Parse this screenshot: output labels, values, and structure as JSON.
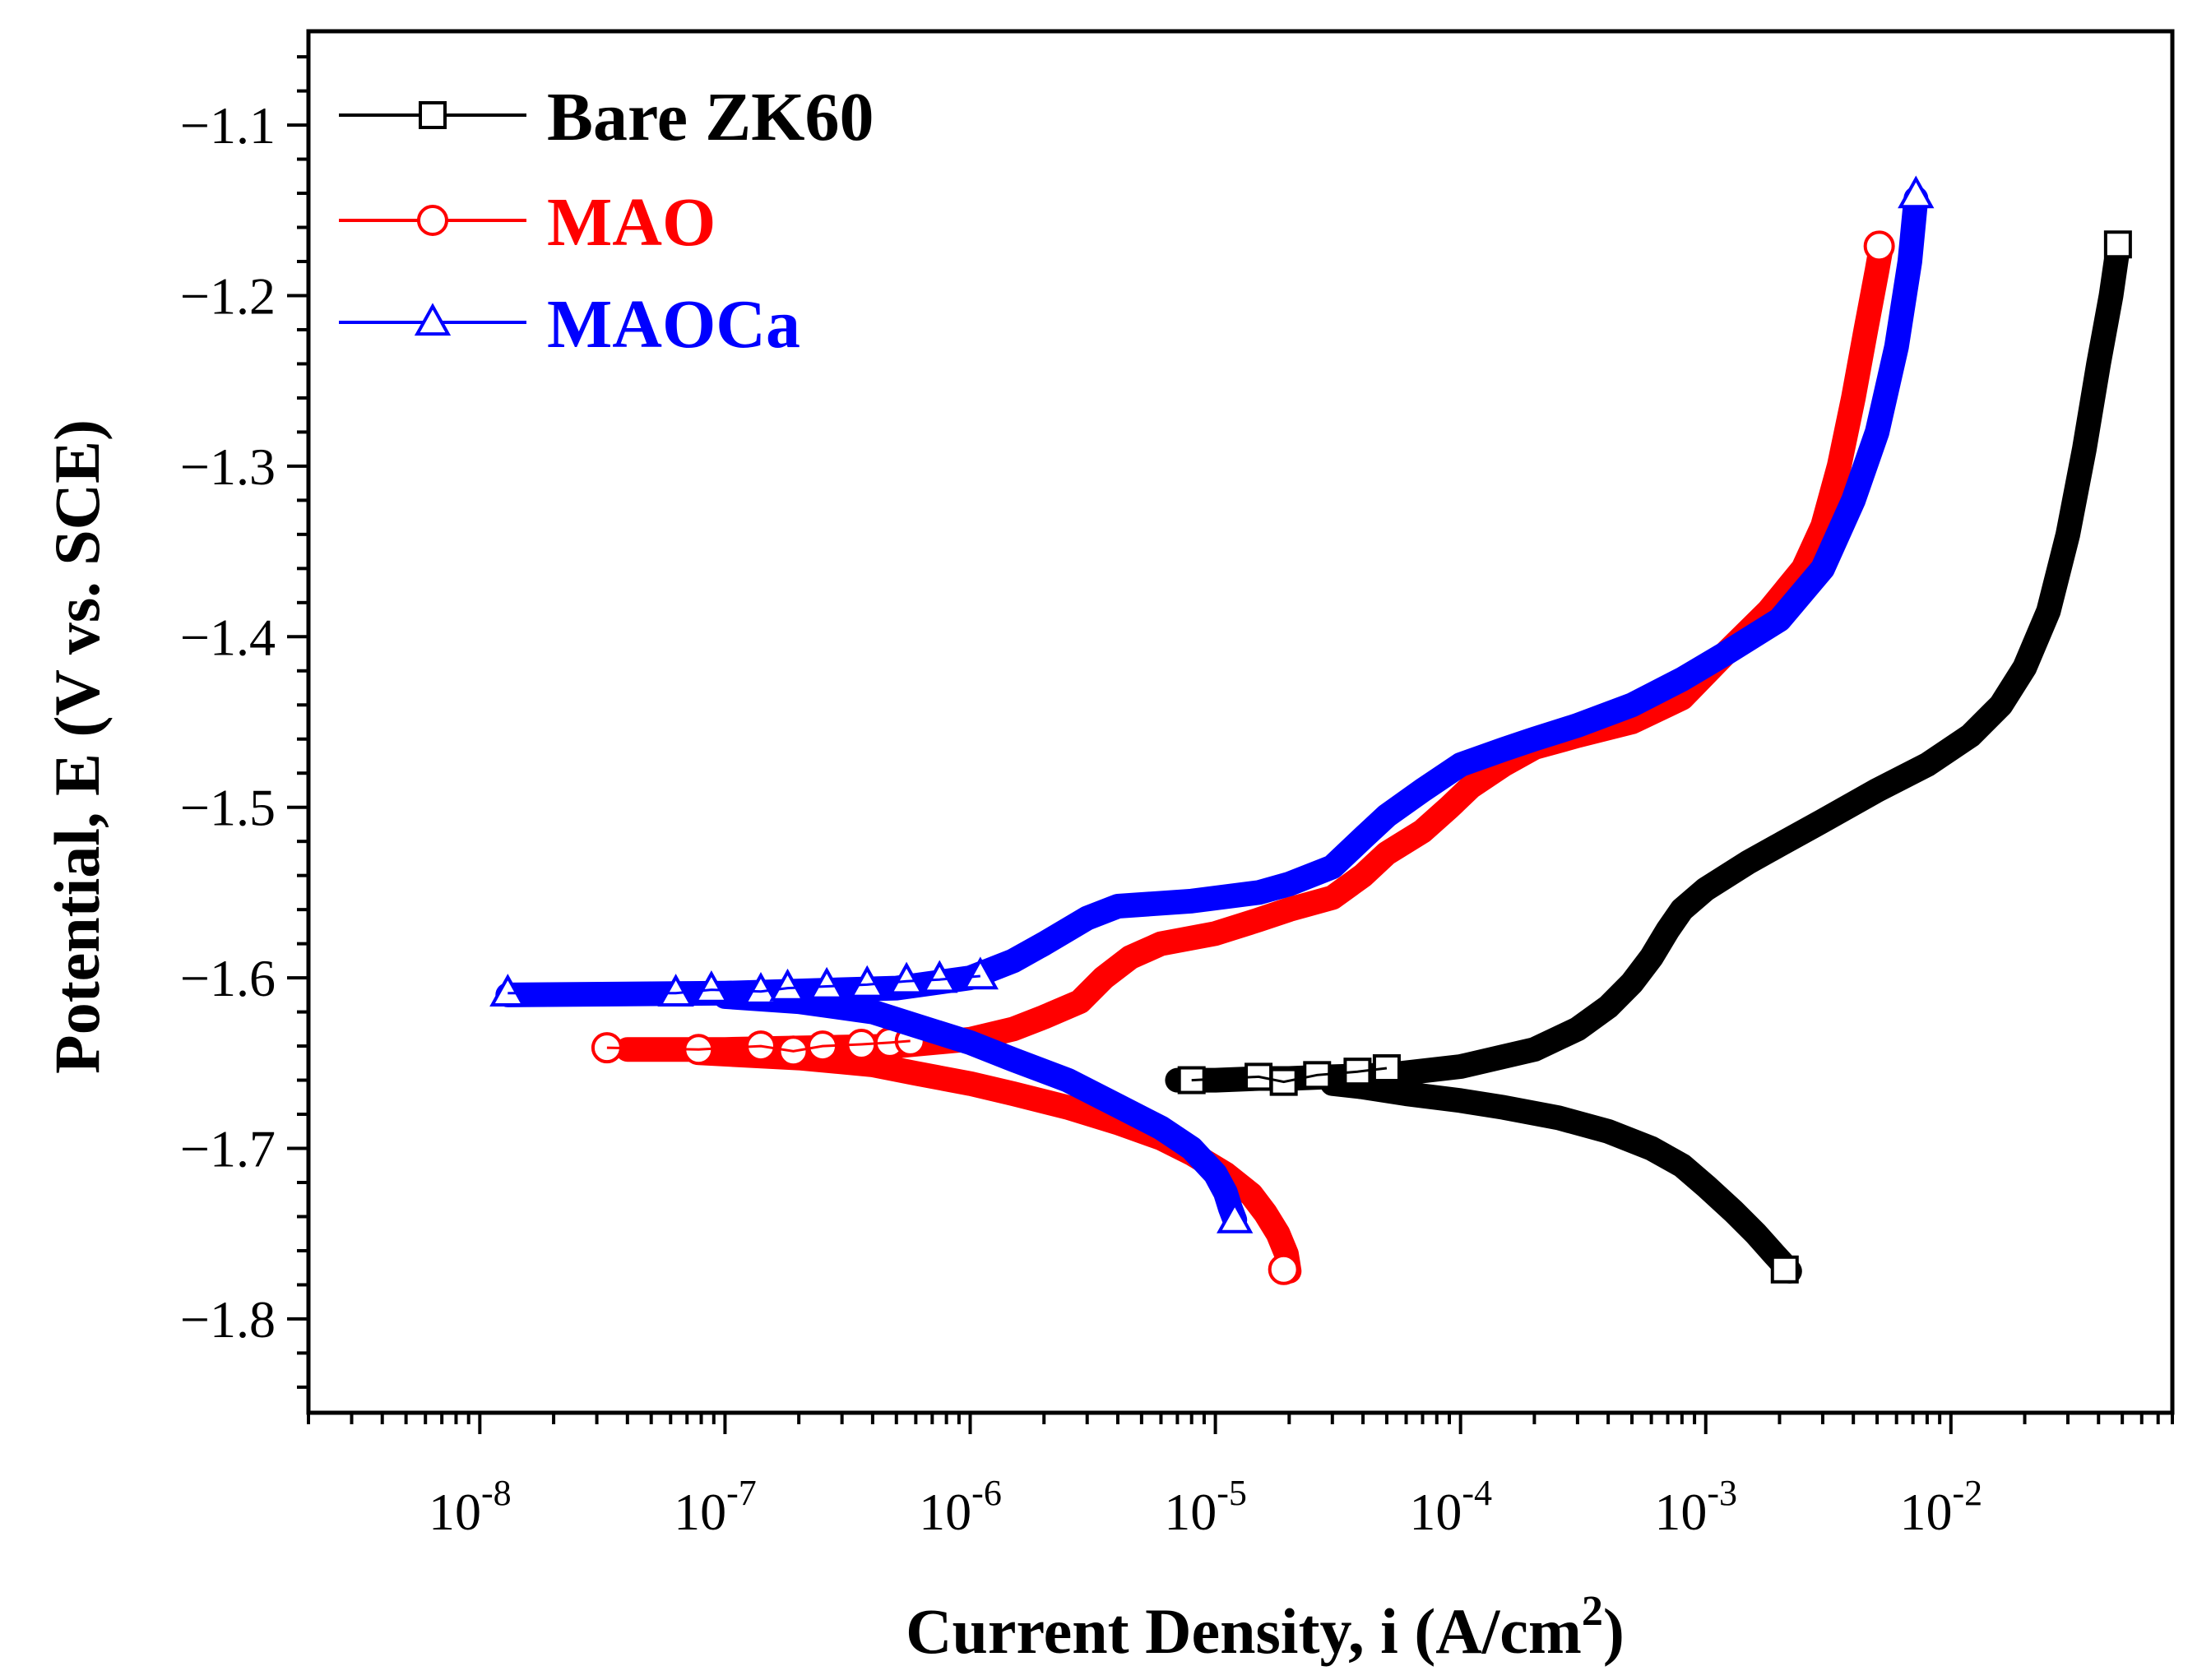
{
  "chart_data": {
    "type": "line",
    "title": "",
    "xlabel": "Current Density, i (A/cm",
    "xlabel_sup": "2",
    "xlabel_close": ")",
    "ylabel": "Potential, E (V vs. SCE)",
    "xscale": "log",
    "xlim": [
      2e-09,
      0.08
    ],
    "ylim": [
      -1.855,
      -1.045
    ],
    "xticks": [
      {
        "value": 1e-08,
        "base": "10",
        "exp": "-8"
      },
      {
        "value": 1e-07,
        "base": "10",
        "exp": "-7"
      },
      {
        "value": 1e-06,
        "base": "10",
        "exp": "-6"
      },
      {
        "value": 1e-05,
        "base": "10",
        "exp": "-5"
      },
      {
        "value": 0.0001,
        "base": "10",
        "exp": "-4"
      },
      {
        "value": 0.001,
        "base": "10",
        "exp": "-3"
      },
      {
        "value": 0.01,
        "base": "10",
        "exp": "-2"
      }
    ],
    "yticks": [
      {
        "value": -1.1,
        "label": "−1.1"
      },
      {
        "value": -1.2,
        "label": "−1.2"
      },
      {
        "value": -1.3,
        "label": "−1.3"
      },
      {
        "value": -1.4,
        "label": "−1.4"
      },
      {
        "value": -1.5,
        "label": "−1.5"
      },
      {
        "value": -1.6,
        "label": "−1.6"
      },
      {
        "value": -1.7,
        "label": "−1.7"
      },
      {
        "value": -1.8,
        "label": "−1.8"
      }
    ],
    "grid": false,
    "legend_position": "top-left",
    "series": [
      {
        "name": "Bare ZK60",
        "color": "#000000",
        "marker": "square",
        "cathodic": [
          [
            0.0022,
            -1.772
          ],
          [
            0.0019,
            -1.762
          ],
          [
            0.0016,
            -1.75
          ],
          [
            0.0013,
            -1.737
          ],
          [
            0.001,
            -1.722
          ],
          [
            0.0008,
            -1.71
          ],
          [
            0.0006,
            -1.7
          ],
          [
            0.0004,
            -1.69
          ],
          [
            0.00025,
            -1.682
          ],
          [
            0.00015,
            -1.676
          ],
          [
            0.0001,
            -1.672
          ],
          [
            6e-05,
            -1.668
          ],
          [
            4e-05,
            -1.664
          ],
          [
            3e-05,
            -1.662
          ]
        ],
        "anodic": [
          [
            7e-06,
            -1.66
          ],
          [
            1e-05,
            -1.66
          ],
          [
            1.5e-05,
            -1.659
          ],
          [
            2e-05,
            -1.659
          ],
          [
            3e-05,
            -1.658
          ],
          [
            5e-05,
            -1.657
          ],
          [
            0.0001,
            -1.652
          ],
          [
            0.0002,
            -1.642
          ],
          [
            0.0003,
            -1.63
          ],
          [
            0.0004,
            -1.617
          ],
          [
            0.0005,
            -1.603
          ],
          [
            0.0006,
            -1.588
          ],
          [
            0.0007,
            -1.572
          ],
          [
            0.0008,
            -1.56
          ],
          [
            0.001,
            -1.548
          ],
          [
            0.0015,
            -1.532
          ],
          [
            0.002,
            -1.522
          ],
          [
            0.003,
            -1.508
          ],
          [
            0.005,
            -1.49
          ],
          [
            0.008,
            -1.475
          ],
          [
            0.012,
            -1.458
          ],
          [
            0.016,
            -1.44
          ],
          [
            0.02,
            -1.418
          ],
          [
            0.025,
            -1.385
          ],
          [
            0.03,
            -1.34
          ],
          [
            0.035,
            -1.29
          ],
          [
            0.04,
            -1.24
          ],
          [
            0.045,
            -1.2
          ],
          [
            0.048,
            -1.172
          ]
        ],
        "open_markers": [
          [
            8e-06,
            -1.66
          ],
          [
            1.5e-05,
            -1.658
          ],
          [
            1.9e-05,
            -1.661
          ],
          [
            2.6e-05,
            -1.657
          ],
          [
            3.8e-05,
            -1.655
          ],
          [
            5e-05,
            -1.653
          ],
          [
            0.0021,
            -1.771
          ],
          [
            0.048,
            -1.17
          ]
        ]
      },
      {
        "name": "MAO",
        "color": "#ff0000",
        "marker": "circle",
        "cathodic": [
          [
            2e-05,
            -1.772
          ],
          [
            1.95e-05,
            -1.762
          ],
          [
            1.8e-05,
            -1.75
          ],
          [
            1.6e-05,
            -1.738
          ],
          [
            1.4e-05,
            -1.727
          ],
          [
            1.1e-05,
            -1.715
          ],
          [
            8e-06,
            -1.703
          ],
          [
            6e-06,
            -1.694
          ],
          [
            4e-06,
            -1.685
          ],
          [
            2.5e-06,
            -1.676
          ],
          [
            1.5e-06,
            -1.668
          ],
          [
            1e-06,
            -1.662
          ],
          [
            6e-07,
            -1.656
          ],
          [
            4e-07,
            -1.651
          ],
          [
            2e-07,
            -1.647
          ],
          [
            8e-08,
            -1.644
          ]
        ],
        "anodic": [
          [
            4e-08,
            -1.642
          ],
          [
            1e-07,
            -1.642
          ],
          [
            5e-07,
            -1.64
          ],
          [
            1e-06,
            -1.636
          ],
          [
            1.5e-06,
            -1.63
          ],
          [
            2e-06,
            -1.623
          ],
          [
            2.8e-06,
            -1.614
          ],
          [
            3.5e-06,
            -1.6
          ],
          [
            4.5e-06,
            -1.588
          ],
          [
            6e-06,
            -1.58
          ],
          [
            1e-05,
            -1.574
          ],
          [
            1.5e-05,
            -1.566
          ],
          [
            2e-05,
            -1.56
          ],
          [
            3e-05,
            -1.553
          ],
          [
            4e-05,
            -1.54
          ],
          [
            5e-05,
            -1.527
          ],
          [
            7e-05,
            -1.514
          ],
          [
            9e-05,
            -1.5
          ],
          [
            0.00011,
            -1.488
          ],
          [
            0.00015,
            -1.475
          ],
          [
            0.0002,
            -1.465
          ],
          [
            0.0003,
            -1.458
          ],
          [
            0.0005,
            -1.45
          ],
          [
            0.0008,
            -1.436
          ],
          [
            0.0012,
            -1.41
          ],
          [
            0.0018,
            -1.385
          ],
          [
            0.0025,
            -1.36
          ],
          [
            0.003,
            -1.335
          ],
          [
            0.0035,
            -1.3
          ],
          [
            0.004,
            -1.26
          ],
          [
            0.0045,
            -1.22
          ],
          [
            0.005,
            -1.185
          ],
          [
            0.0052,
            -1.171
          ]
        ],
        "open_markers": [
          [
            3.3e-08,
            -1.641
          ],
          [
            7.8e-08,
            -1.642
          ],
          [
            1.4e-07,
            -1.64
          ],
          [
            1.9e-07,
            -1.643
          ],
          [
            2.5e-07,
            -1.64
          ],
          [
            3.6e-07,
            -1.639
          ],
          [
            4.7e-07,
            -1.638
          ],
          [
            5.7e-07,
            -1.637
          ],
          [
            1.9e-05,
            -1.771
          ],
          [
            0.0051,
            -1.171
          ]
        ]
      },
      {
        "name": "MAOCa",
        "color": "#0000ff",
        "marker": "triangle",
        "cathodic": [
          [
            1.2e-05,
            -1.742
          ],
          [
            1.15e-05,
            -1.735
          ],
          [
            1.1e-05,
            -1.726
          ],
          [
            1e-05,
            -1.715
          ],
          [
            8e-06,
            -1.7
          ],
          [
            6e-06,
            -1.688
          ],
          [
            4e-06,
            -1.675
          ],
          [
            2.5e-06,
            -1.66
          ],
          [
            1.5e-06,
            -1.648
          ],
          [
            1e-06,
            -1.638
          ],
          [
            6e-07,
            -1.628
          ],
          [
            4e-07,
            -1.62
          ],
          [
            2e-07,
            -1.614
          ],
          [
            1e-07,
            -1.611
          ]
        ],
        "anodic": [
          [
            1.3e-08,
            -1.61
          ],
          [
            1e-07,
            -1.609
          ],
          [
            5e-07,
            -1.606
          ],
          [
            1e-06,
            -1.6
          ],
          [
            1.5e-06,
            -1.59
          ],
          [
            2e-06,
            -1.58
          ],
          [
            3e-06,
            -1.565
          ],
          [
            4e-06,
            -1.558
          ],
          [
            8e-06,
            -1.555
          ],
          [
            1.5e-05,
            -1.55
          ],
          [
            2e-05,
            -1.545
          ],
          [
            3e-05,
            -1.535
          ],
          [
            4e-05,
            -1.518
          ],
          [
            5e-05,
            -1.505
          ],
          [
            7e-05,
            -1.49
          ],
          [
            0.0001,
            -1.475
          ],
          [
            0.00015,
            -1.466
          ],
          [
            0.0002,
            -1.46
          ],
          [
            0.0003,
            -1.452
          ],
          [
            0.0005,
            -1.44
          ],
          [
            0.0008,
            -1.425
          ],
          [
            0.0012,
            -1.41
          ],
          [
            0.002,
            -1.39
          ],
          [
            0.003,
            -1.36
          ],
          [
            0.004,
            -1.32
          ],
          [
            0.005,
            -1.28
          ],
          [
            0.006,
            -1.23
          ],
          [
            0.0068,
            -1.18
          ],
          [
            0.0072,
            -1.143
          ]
        ],
        "open_markers": [
          [
            1.3e-08,
            -1.609
          ],
          [
            6.3e-08,
            -1.609
          ],
          [
            8.8e-08,
            -1.607
          ],
          [
            1.4e-07,
            -1.608
          ],
          [
            1.8e-07,
            -1.606
          ],
          [
            2.6e-07,
            -1.605
          ],
          [
            3.8e-07,
            -1.604
          ],
          [
            5.5e-07,
            -1.602
          ],
          [
            7.5e-07,
            -1.601
          ],
          [
            1.1e-06,
            -1.599
          ],
          [
            1.2e-05,
            -1.742
          ],
          [
            0.0072,
            -1.141
          ]
        ]
      }
    ]
  }
}
